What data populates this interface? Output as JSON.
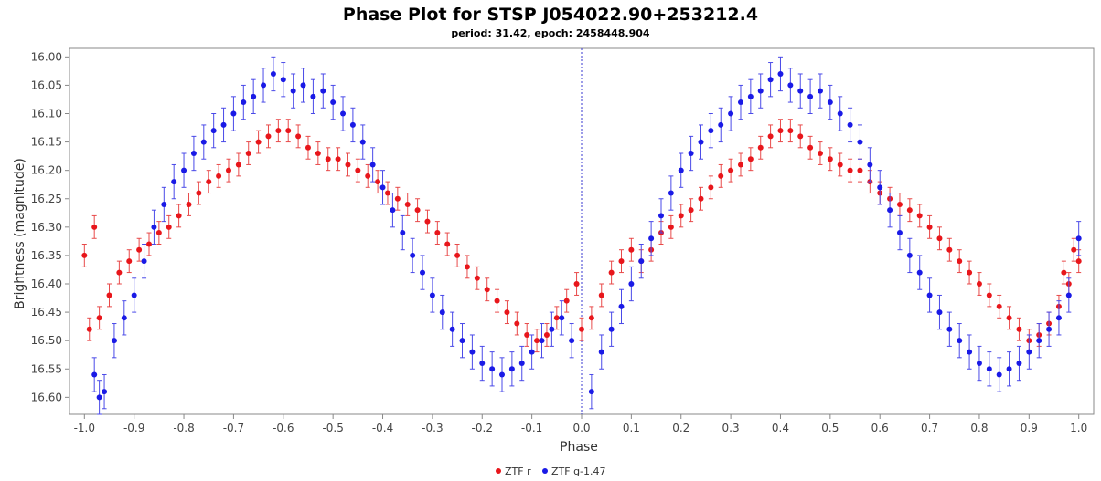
{
  "chart_data": {
    "type": "scatter",
    "title": "Phase Plot for STSP J054022.90+253212.4",
    "subtitle": "period: 31.42, epoch: 2458448.904",
    "xlabel": "Phase",
    "ylabel": "Brightness (magnitude)",
    "xlim": [
      -1.03,
      1.03
    ],
    "ylim": [
      16.63,
      15.985
    ],
    "y_inverted": true,
    "x_ticks": [
      "-1.0",
      "-0.9",
      "-0.8",
      "-0.7",
      "-0.6",
      "-0.5",
      "-0.4",
      "-0.3",
      "-0.2",
      "-0.1",
      "0.0",
      "0.1",
      "0.2",
      "0.3",
      "0.4",
      "0.5",
      "0.6",
      "0.7",
      "0.8",
      "0.9",
      "1.0"
    ],
    "y_ticks": [
      "16.00",
      "16.05",
      "16.10",
      "16.15",
      "16.20",
      "16.25",
      "16.30",
      "16.35",
      "16.40",
      "16.45",
      "16.50",
      "16.55",
      "16.60"
    ],
    "reference_line_x": 0.0,
    "legend_position": "bottom-center",
    "colors": {
      "red_series": "#e8161b",
      "blue_series": "#1a1ae6",
      "error_bar_red": "#e84a4a",
      "error_bar_blue": "#4a4ae8",
      "plot_border": "#888888"
    },
    "series": [
      {
        "name": "ZTF r",
        "color": "#e8161b",
        "points": [
          [
            0.0,
            16.48,
            0.02
          ],
          [
            0.02,
            16.46,
            0.02
          ],
          [
            0.04,
            16.42,
            0.02
          ],
          [
            0.06,
            16.38,
            0.02
          ],
          [
            0.08,
            16.36,
            0.02
          ],
          [
            0.1,
            16.34,
            0.02
          ],
          [
            0.12,
            16.36,
            0.02
          ],
          [
            0.14,
            16.34,
            0.02
          ],
          [
            0.16,
            16.31,
            0.02
          ],
          [
            0.18,
            16.3,
            0.02
          ],
          [
            0.2,
            16.28,
            0.02
          ],
          [
            0.22,
            16.27,
            0.02
          ],
          [
            0.24,
            16.25,
            0.02
          ],
          [
            0.26,
            16.23,
            0.02
          ],
          [
            0.28,
            16.21,
            0.02
          ],
          [
            0.3,
            16.2,
            0.02
          ],
          [
            0.32,
            16.19,
            0.02
          ],
          [
            0.34,
            16.18,
            0.02
          ],
          [
            0.36,
            16.16,
            0.02
          ],
          [
            0.38,
            16.14,
            0.02
          ],
          [
            0.4,
            16.13,
            0.02
          ],
          [
            0.42,
            16.13,
            0.02
          ],
          [
            0.44,
            16.14,
            0.02
          ],
          [
            0.46,
            16.16,
            0.02
          ],
          [
            0.48,
            16.17,
            0.02
          ],
          [
            0.5,
            16.18,
            0.02
          ],
          [
            0.52,
            16.19,
            0.02
          ],
          [
            0.54,
            16.2,
            0.02
          ],
          [
            0.56,
            16.2,
            0.02
          ],
          [
            0.58,
            16.22,
            0.02
          ],
          [
            0.6,
            16.24,
            0.02
          ],
          [
            0.62,
            16.25,
            0.02
          ],
          [
            0.64,
            16.26,
            0.02
          ],
          [
            0.66,
            16.27,
            0.02
          ],
          [
            0.68,
            16.28,
            0.02
          ],
          [
            0.7,
            16.3,
            0.02
          ],
          [
            0.72,
            16.32,
            0.02
          ],
          [
            0.74,
            16.34,
            0.02
          ],
          [
            0.76,
            16.36,
            0.02
          ],
          [
            0.78,
            16.38,
            0.02
          ],
          [
            0.8,
            16.4,
            0.02
          ],
          [
            0.82,
            16.42,
            0.02
          ],
          [
            0.84,
            16.44,
            0.02
          ],
          [
            0.86,
            16.46,
            0.02
          ],
          [
            0.88,
            16.48,
            0.02
          ],
          [
            0.9,
            16.5,
            0.02
          ],
          [
            0.92,
            16.49,
            0.02
          ],
          [
            0.94,
            16.47,
            0.02
          ],
          [
            0.96,
            16.44,
            0.02
          ],
          [
            0.98,
            16.4,
            0.02
          ],
          [
            1.0,
            16.36,
            0.02
          ],
          [
            -0.99,
            16.48,
            0.02
          ],
          [
            -0.97,
            16.46,
            0.02
          ],
          [
            -0.95,
            16.42,
            0.02
          ],
          [
            -0.93,
            16.38,
            0.02
          ],
          [
            -0.91,
            16.36,
            0.02
          ],
          [
            -0.89,
            16.34,
            0.02
          ],
          [
            -0.87,
            16.33,
            0.02
          ],
          [
            -0.85,
            16.31,
            0.02
          ],
          [
            -0.83,
            16.3,
            0.02
          ],
          [
            -0.81,
            16.28,
            0.02
          ],
          [
            -0.79,
            16.26,
            0.02
          ],
          [
            -0.77,
            16.24,
            0.02
          ],
          [
            -0.75,
            16.22,
            0.02
          ],
          [
            -0.73,
            16.21,
            0.02
          ],
          [
            -0.71,
            16.2,
            0.02
          ],
          [
            -0.69,
            16.19,
            0.02
          ],
          [
            -0.67,
            16.17,
            0.02
          ],
          [
            -0.65,
            16.15,
            0.02
          ],
          [
            -0.63,
            16.14,
            0.02
          ],
          [
            -0.61,
            16.13,
            0.02
          ],
          [
            -0.59,
            16.13,
            0.02
          ],
          [
            -0.57,
            16.14,
            0.02
          ],
          [
            -0.55,
            16.16,
            0.02
          ],
          [
            -0.53,
            16.17,
            0.02
          ],
          [
            -0.51,
            16.18,
            0.02
          ],
          [
            -0.49,
            16.18,
            0.02
          ],
          [
            -0.47,
            16.19,
            0.02
          ],
          [
            -0.45,
            16.2,
            0.02
          ],
          [
            -0.43,
            16.21,
            0.02
          ],
          [
            -0.41,
            16.22,
            0.02
          ],
          [
            -0.39,
            16.24,
            0.02
          ],
          [
            -0.37,
            16.25,
            0.02
          ],
          [
            -0.35,
            16.26,
            0.02
          ],
          [
            -0.33,
            16.27,
            0.02
          ],
          [
            -0.31,
            16.29,
            0.02
          ],
          [
            -0.29,
            16.31,
            0.02
          ],
          [
            -0.27,
            16.33,
            0.02
          ],
          [
            -0.25,
            16.35,
            0.02
          ],
          [
            -0.23,
            16.37,
            0.02
          ],
          [
            -0.21,
            16.39,
            0.02
          ],
          [
            -0.19,
            16.41,
            0.02
          ],
          [
            -0.17,
            16.43,
            0.02
          ],
          [
            -0.15,
            16.45,
            0.02
          ],
          [
            -0.13,
            16.47,
            0.02
          ],
          [
            -0.11,
            16.49,
            0.02
          ],
          [
            -0.09,
            16.5,
            0.02
          ],
          [
            -0.07,
            16.49,
            0.02
          ],
          [
            -0.05,
            16.46,
            0.02
          ],
          [
            -0.03,
            16.43,
            0.02
          ],
          [
            -0.01,
            16.4,
            0.02
          ],
          [
            -1.0,
            16.35,
            0.02
          ],
          [
            -0.98,
            16.3,
            0.02
          ],
          [
            0.99,
            16.34,
            0.02
          ],
          [
            0.97,
            16.38,
            0.02
          ]
        ]
      },
      {
        "name": "ZTF g-1.47",
        "color": "#1a1ae6",
        "points": [
          [
            -0.98,
            16.56,
            0.03
          ],
          [
            -0.96,
            16.59,
            0.03
          ],
          [
            -0.94,
            16.5,
            0.03
          ],
          [
            -0.92,
            16.46,
            0.03
          ],
          [
            -0.9,
            16.42,
            0.03
          ],
          [
            -0.88,
            16.36,
            0.03
          ],
          [
            -0.86,
            16.3,
            0.03
          ],
          [
            -0.84,
            16.26,
            0.03
          ],
          [
            -0.82,
            16.22,
            0.03
          ],
          [
            -0.8,
            16.2,
            0.03
          ],
          [
            -0.78,
            16.17,
            0.03
          ],
          [
            -0.76,
            16.15,
            0.03
          ],
          [
            -0.74,
            16.13,
            0.03
          ],
          [
            -0.72,
            16.12,
            0.03
          ],
          [
            -0.7,
            16.1,
            0.03
          ],
          [
            -0.68,
            16.08,
            0.03
          ],
          [
            -0.66,
            16.07,
            0.03
          ],
          [
            -0.64,
            16.05,
            0.03
          ],
          [
            -0.62,
            16.03,
            0.03
          ],
          [
            -0.6,
            16.04,
            0.03
          ],
          [
            -0.58,
            16.06,
            0.03
          ],
          [
            -0.56,
            16.05,
            0.03
          ],
          [
            -0.54,
            16.07,
            0.03
          ],
          [
            -0.52,
            16.06,
            0.03
          ],
          [
            -0.5,
            16.08,
            0.03
          ],
          [
            -0.48,
            16.1,
            0.03
          ],
          [
            -0.46,
            16.12,
            0.03
          ],
          [
            -0.44,
            16.15,
            0.03
          ],
          [
            -0.42,
            16.19,
            0.03
          ],
          [
            -0.4,
            16.23,
            0.03
          ],
          [
            -0.38,
            16.27,
            0.03
          ],
          [
            -0.36,
            16.31,
            0.03
          ],
          [
            -0.34,
            16.35,
            0.03
          ],
          [
            -0.32,
            16.38,
            0.03
          ],
          [
            -0.3,
            16.42,
            0.03
          ],
          [
            -0.28,
            16.45,
            0.03
          ],
          [
            -0.26,
            16.48,
            0.03
          ],
          [
            -0.24,
            16.5,
            0.03
          ],
          [
            -0.22,
            16.52,
            0.03
          ],
          [
            -0.2,
            16.54,
            0.03
          ],
          [
            -0.18,
            16.55,
            0.03
          ],
          [
            -0.16,
            16.56,
            0.03
          ],
          [
            -0.14,
            16.55,
            0.03
          ],
          [
            -0.12,
            16.54,
            0.03
          ],
          [
            -0.1,
            16.52,
            0.03
          ],
          [
            -0.08,
            16.5,
            0.03
          ],
          [
            -0.06,
            16.48,
            0.03
          ],
          [
            -0.04,
            16.46,
            0.03
          ],
          [
            -0.02,
            16.5,
            0.03
          ],
          [
            0.02,
            16.59,
            0.03
          ],
          [
            0.04,
            16.52,
            0.03
          ],
          [
            0.06,
            16.48,
            0.03
          ],
          [
            0.08,
            16.44,
            0.03
          ],
          [
            0.1,
            16.4,
            0.03
          ],
          [
            0.12,
            16.36,
            0.03
          ],
          [
            0.14,
            16.32,
            0.03
          ],
          [
            0.16,
            16.28,
            0.03
          ],
          [
            0.18,
            16.24,
            0.03
          ],
          [
            0.2,
            16.2,
            0.03
          ],
          [
            0.22,
            16.17,
            0.03
          ],
          [
            0.24,
            16.15,
            0.03
          ],
          [
            0.26,
            16.13,
            0.03
          ],
          [
            0.28,
            16.12,
            0.03
          ],
          [
            0.3,
            16.1,
            0.03
          ],
          [
            0.32,
            16.08,
            0.03
          ],
          [
            0.34,
            16.07,
            0.03
          ],
          [
            0.36,
            16.06,
            0.03
          ],
          [
            0.38,
            16.04,
            0.03
          ],
          [
            0.4,
            16.03,
            0.03
          ],
          [
            0.42,
            16.05,
            0.03
          ],
          [
            0.44,
            16.06,
            0.03
          ],
          [
            0.46,
            16.07,
            0.03
          ],
          [
            0.48,
            16.06,
            0.03
          ],
          [
            0.5,
            16.08,
            0.03
          ],
          [
            0.52,
            16.1,
            0.03
          ],
          [
            0.54,
            16.12,
            0.03
          ],
          [
            0.56,
            16.15,
            0.03
          ],
          [
            0.58,
            16.19,
            0.03
          ],
          [
            0.6,
            16.23,
            0.03
          ],
          [
            0.62,
            16.27,
            0.03
          ],
          [
            0.64,
            16.31,
            0.03
          ],
          [
            0.66,
            16.35,
            0.03
          ],
          [
            0.68,
            16.38,
            0.03
          ],
          [
            0.7,
            16.42,
            0.03
          ],
          [
            0.72,
            16.45,
            0.03
          ],
          [
            0.74,
            16.48,
            0.03
          ],
          [
            0.76,
            16.5,
            0.03
          ],
          [
            0.78,
            16.52,
            0.03
          ],
          [
            0.8,
            16.54,
            0.03
          ],
          [
            0.82,
            16.55,
            0.03
          ],
          [
            0.84,
            16.56,
            0.03
          ],
          [
            0.86,
            16.55,
            0.03
          ],
          [
            0.88,
            16.54,
            0.03
          ],
          [
            0.9,
            16.52,
            0.03
          ],
          [
            0.92,
            16.5,
            0.03
          ],
          [
            0.94,
            16.48,
            0.03
          ],
          [
            0.96,
            16.46,
            0.03
          ],
          [
            0.98,
            16.42,
            0.03
          ],
          [
            1.0,
            16.32,
            0.03
          ],
          [
            -0.97,
            16.6,
            0.03
          ]
        ]
      }
    ]
  }
}
